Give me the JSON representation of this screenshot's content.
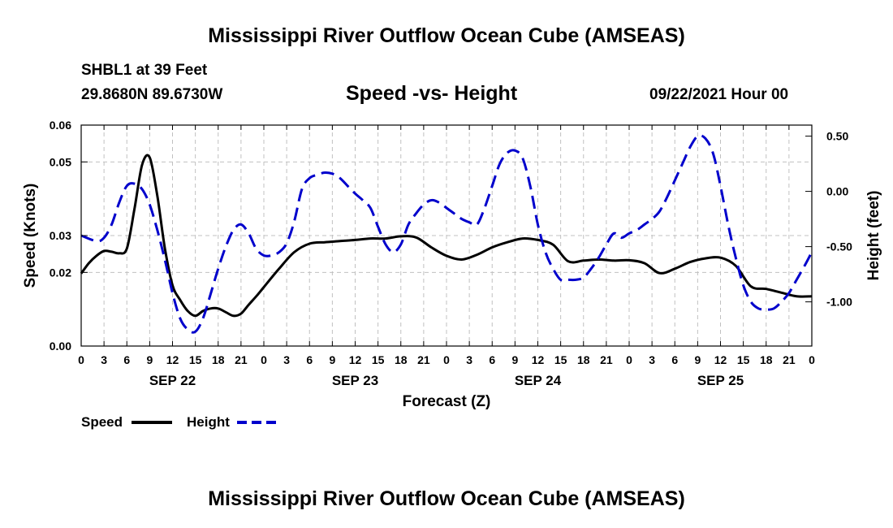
{
  "header": {
    "title": "Mississippi River Outflow Ocean Cube (AMSEAS)",
    "station": "SHBL1 at 39 Feet",
    "coords": "29.8680N  89.6730W",
    "subtitle": "Speed -vs- Height",
    "datetime": "09/22/2021 Hour 00"
  },
  "footer": {
    "title": "Mississippi River Outflow Ocean Cube (AMSEAS)"
  },
  "chart_data": {
    "type": "line",
    "title": "Speed -vs- Height",
    "xlabel": "Forecast (Z)",
    "ylabel": "Speed (Knots)",
    "y2label": "Height (feet)",
    "xlim": [
      0,
      96
    ],
    "ylim": [
      0,
      0.06
    ],
    "y2lim": [
      -1.4,
      0.6
    ],
    "x_tick_step_hours": 3,
    "x_tick_labels": [
      "0",
      "3",
      "6",
      "9",
      "12",
      "15",
      "18",
      "21",
      "0",
      "3",
      "6",
      "9",
      "12",
      "15",
      "18",
      "21",
      "0",
      "3",
      "6",
      "9",
      "12",
      "15",
      "18",
      "21",
      "0",
      "3",
      "6",
      "9",
      "12",
      "15",
      "18",
      "21",
      "0"
    ],
    "date_labels": [
      {
        "hour": 12,
        "label": "SEP 22"
      },
      {
        "hour": 36,
        "label": "SEP 23"
      },
      {
        "hour": 60,
        "label": "SEP 24"
      },
      {
        "hour": 84,
        "label": "SEP 25"
      }
    ],
    "y_ticks": [
      0.0,
      0.02,
      0.03,
      0.05,
      0.06
    ],
    "y_tick_labels": [
      "0.00",
      "0.02",
      "0.03",
      "0.05",
      "0.06"
    ],
    "y2_ticks": [
      0.5,
      0.0,
      -0.5,
      -1.0
    ],
    "y2_tick_labels": [
      "0.50",
      "0.00",
      "-0.50",
      "-1.00"
    ],
    "grid": true,
    "legend_position": "bottom-left",
    "series": [
      {
        "name": "Speed",
        "axis": "left",
        "color": "#000000",
        "style": "solid",
        "x": [
          0,
          1,
          2,
          3,
          4,
          5,
          6,
          7,
          8,
          9,
          10,
          11,
          12,
          13,
          14,
          15,
          16,
          17,
          18,
          19,
          20,
          21,
          22,
          23,
          24,
          26,
          28,
          30,
          32,
          34,
          36,
          38,
          40,
          42,
          44,
          46,
          48,
          50,
          52,
          54,
          56,
          58,
          60,
          62,
          64,
          66,
          68,
          70,
          72,
          74,
          76,
          78,
          80,
          82,
          84,
          86,
          88,
          90,
          92,
          94,
          96
        ],
        "values": [
          0.0197,
          0.0225,
          0.0245,
          0.0258,
          0.0256,
          0.0252,
          0.0265,
          0.0372,
          0.0492,
          0.0512,
          0.0408,
          0.0265,
          0.0165,
          0.0125,
          0.0095,
          0.0082,
          0.0095,
          0.0102,
          0.0102,
          0.0092,
          0.0082,
          0.0088,
          0.0112,
          0.0135,
          0.016,
          0.021,
          0.0255,
          0.0278,
          0.0282,
          0.0285,
          0.0288,
          0.0292,
          0.0292,
          0.0298,
          0.0295,
          0.0268,
          0.0245,
          0.0235,
          0.0248,
          0.0268,
          0.0282,
          0.0292,
          0.0288,
          0.0275,
          0.023,
          0.0232,
          0.0235,
          0.0232,
          0.0233,
          0.0225,
          0.0198,
          0.021,
          0.0228,
          0.0238,
          0.024,
          0.0218,
          0.0162,
          0.0155,
          0.0145,
          0.0135,
          0.0135
        ]
      },
      {
        "name": "Height",
        "axis": "right",
        "color": "#0000cc",
        "style": "dashed",
        "x": [
          0,
          2,
          3,
          4,
          5,
          6,
          7,
          8,
          9,
          10,
          11,
          12,
          13,
          14,
          15,
          16,
          17,
          18,
          19,
          20,
          21,
          22,
          23,
          24,
          25,
          26,
          27,
          28,
          29,
          30,
          31,
          32,
          33,
          34,
          35,
          36,
          37,
          38,
          39,
          40,
          41,
          42,
          43,
          44,
          45,
          46,
          47,
          48,
          49,
          50,
          51,
          52,
          53,
          54,
          55,
          56,
          57,
          58,
          59,
          60,
          61,
          62,
          63,
          64,
          65,
          66,
          67,
          68,
          69,
          70,
          71,
          72,
          73,
          74,
          75,
          76,
          77,
          78,
          79,
          80,
          81,
          82,
          83,
          84,
          85,
          86,
          87,
          88,
          89,
          90,
          91,
          92,
          93,
          94,
          95,
          96
        ],
        "values": [
          -0.4,
          -0.45,
          -0.42,
          -0.3,
          -0.1,
          0.05,
          0.07,
          0.02,
          -0.12,
          -0.35,
          -0.62,
          -0.92,
          -1.15,
          -1.25,
          -1.27,
          -1.15,
          -0.93,
          -0.7,
          -0.5,
          -0.35,
          -0.3,
          -0.38,
          -0.52,
          -0.58,
          -0.58,
          -0.55,
          -0.47,
          -0.27,
          0.02,
          0.12,
          0.15,
          0.17,
          0.16,
          0.12,
          0.05,
          -0.02,
          -0.08,
          -0.15,
          -0.32,
          -0.48,
          -0.55,
          -0.48,
          -0.3,
          -0.2,
          -0.12,
          -0.08,
          -0.1,
          -0.15,
          -0.2,
          -0.25,
          -0.28,
          -0.3,
          -0.15,
          0.05,
          0.25,
          0.35,
          0.37,
          0.3,
          0.05,
          -0.3,
          -0.55,
          -0.7,
          -0.8,
          -0.8,
          -0.8,
          -0.78,
          -0.7,
          -0.6,
          -0.48,
          -0.38,
          -0.42,
          -0.38,
          -0.35,
          -0.3,
          -0.25,
          -0.18,
          -0.05,
          0.1,
          0.25,
          0.4,
          0.5,
          0.48,
          0.35,
          0.05,
          -0.3,
          -0.6,
          -0.85,
          -1.0,
          -1.06,
          -1.07,
          -1.06,
          -1.0,
          -0.92,
          -0.8,
          -0.68,
          -0.55
        ]
      }
    ]
  },
  "legend": {
    "speed_label": "Speed",
    "height_label": "Height"
  }
}
